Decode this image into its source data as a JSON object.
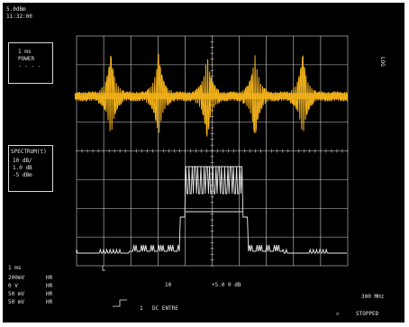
{
  "window": {
    "header_line1": "5.0dBm",
    "header_line2": "11:32:00"
  },
  "top_panel": {
    "line1": "1 ms",
    "line2": "POWER",
    "line3": "- - - -"
  },
  "top_right_tag": "LOG",
  "mid_panel": {
    "title": "SPECTRUM(t)",
    "line1": "10 dB/",
    "line2": "1.0 dB",
    "line3": "-5 dBm"
  },
  "bottom_left": {
    "timebase": "1 ms",
    "rows": [
      {
        "label": "200mV",
        "value": "HR"
      },
      {
        "label": "0 V",
        "value": "HR"
      },
      {
        "label": "50 mV",
        "value": "HR"
      },
      {
        "label": "50 mV",
        "value": "HR"
      }
    ]
  },
  "bottom_center": {
    "label_a": "10",
    "label_b": "+5.0 0 dB",
    "trigger": "DC ENTRE",
    "channel": "1"
  },
  "bottom_right": {
    "freq": "300 MHz",
    "status": "STOPPED"
  },
  "colors": {
    "screen_bg": "#000000",
    "grid": "#d0d0d0",
    "signal": "#f2b21a",
    "trace": "#e8e8e8"
  },
  "icons": [
    "trigger-marker-icon",
    "ground-marker-icon",
    "trigger-level-icon"
  ]
}
